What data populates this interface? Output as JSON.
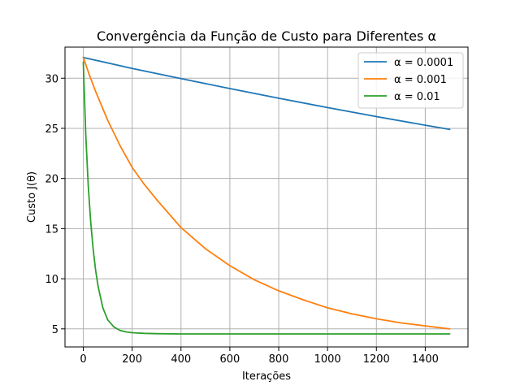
{
  "chart_data": {
    "type": "line",
    "title": "Convergência da Função de Custo para Diferentes α",
    "xlabel": "Iterações",
    "ylabel": "Custo J(θ)",
    "xlim": [
      -75,
      1575
    ],
    "ylim": [
      3.2,
      33.1
    ],
    "xticks": [
      0,
      200,
      400,
      600,
      800,
      1000,
      1200,
      1400
    ],
    "yticks": [
      5,
      10,
      15,
      20,
      25,
      30
    ],
    "grid": true,
    "legend_position": "top-right",
    "series": [
      {
        "name": "α = 0.0001",
        "color": "#1f77b4",
        "x": [
          0,
          200,
          400,
          600,
          800,
          1000,
          1200,
          1400,
          1500
        ],
        "y": [
          32.07,
          30.98,
          29.96,
          28.97,
          28.0,
          27.07,
          26.17,
          25.31,
          24.9
        ]
      },
      {
        "name": "α = 0.001",
        "color": "#ff7f0e",
        "x": [
          0,
          25,
          50,
          100,
          150,
          200,
          250,
          300,
          400,
          500,
          600,
          700,
          800,
          900,
          1000,
          1100,
          1200,
          1300,
          1400,
          1500
        ],
        "y": [
          32.07,
          30.3,
          28.7,
          25.8,
          23.3,
          21.1,
          19.4,
          17.9,
          15.1,
          13.0,
          11.3,
          9.9,
          8.8,
          7.9,
          7.1,
          6.5,
          6.0,
          5.6,
          5.3,
          5.0
        ]
      },
      {
        "name": "α = 0.01",
        "color": "#2ca02c",
        "x": [
          0,
          10,
          20,
          30,
          40,
          50,
          60,
          80,
          100,
          125,
          150,
          175,
          200,
          250,
          300,
          400,
          500,
          700,
          1000,
          1500
        ],
        "y": [
          31.6,
          24.3,
          19.3,
          15.7,
          13.0,
          10.9,
          9.3,
          7.1,
          5.9,
          5.2,
          4.85,
          4.7,
          4.62,
          4.55,
          4.52,
          4.5,
          4.5,
          4.5,
          4.5,
          4.5
        ]
      }
    ]
  }
}
